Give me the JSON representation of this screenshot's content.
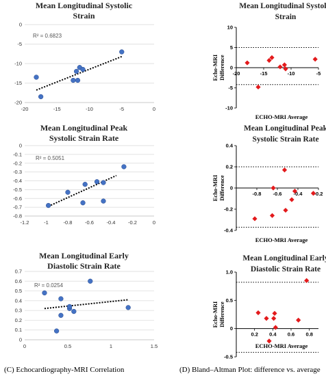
{
  "caption_left": "(C) Echocardiography-MRI Correlation",
  "caption_right": "(D) Bland–Altman Plot: difference vs. average",
  "chart_data": [
    {
      "type": "scatter",
      "title_lines": [
        "Mean Longitudinal  Systolic",
        "Strain"
      ],
      "xlim": [
        -20,
        0
      ],
      "xticks": [
        -20,
        -15,
        -10,
        -5,
        0
      ],
      "ylim": [
        -20,
        0
      ],
      "yticks": [
        -20,
        -15,
        -10,
        -5,
        0
      ],
      "r2": "R² = 0.6823",
      "points": [
        [
          -18.2,
          -13.5
        ],
        [
          -17.5,
          -18.5
        ],
        [
          -12.5,
          -14.3
        ],
        [
          -12,
          -12
        ],
        [
          -11.8,
          -14.3
        ],
        [
          -11.5,
          -11
        ],
        [
          -11,
          -11.5
        ],
        [
          -5,
          -7
        ]
      ],
      "trend": [
        [
          -18.2,
          -16.8
        ],
        [
          -5,
          -8.2
        ]
      ],
      "series_color": "#4472c4"
    },
    {
      "type": "scatter",
      "title_lines": [
        "Mean Longitudinal  Peak",
        "Systolic Strain Rate"
      ],
      "xlim": [
        -1.2,
        0
      ],
      "xticks": [
        -1.2,
        -1,
        -0.8,
        -0.6,
        -0.4,
        -0.2,
        0
      ],
      "ylim": [
        -0.8,
        0
      ],
      "yticks": [
        -0.8,
        -0.7,
        -0.6,
        -0.5,
        -0.4,
        -0.3,
        -0.2,
        -0.1,
        0
      ],
      "r2": "R² = 0.5051",
      "points": [
        [
          -0.98,
          -0.68
        ],
        [
          -0.8,
          -0.53
        ],
        [
          -0.66,
          -0.65
        ],
        [
          -0.64,
          -0.44
        ],
        [
          -0.53,
          -0.41
        ],
        [
          -0.47,
          -0.42
        ],
        [
          -0.47,
          -0.63
        ],
        [
          -0.28,
          -0.24
        ]
      ],
      "trend": [
        [
          -0.98,
          -0.69
        ],
        [
          -0.35,
          -0.34
        ]
      ],
      "series_color": "#4472c4"
    },
    {
      "type": "scatter",
      "title_lines": [
        "Mean Longitudinal  Early",
        "Diastolic Strain Rate"
      ],
      "xlim": [
        0,
        1.5
      ],
      "xticks": [
        0,
        0.5,
        1,
        1.5
      ],
      "ylim": [
        0,
        0.7
      ],
      "yticks": [
        0,
        0.1,
        0.2,
        0.3,
        0.4,
        0.5,
        0.6,
        0.7
      ],
      "r2": "R² = 0.0254",
      "points": [
        [
          0.23,
          0.48
        ],
        [
          0.37,
          0.09
        ],
        [
          0.42,
          0.42
        ],
        [
          0.42,
          0.25
        ],
        [
          0.52,
          0.32
        ],
        [
          0.52,
          0.34
        ],
        [
          0.57,
          0.29
        ],
        [
          0.76,
          0.6
        ],
        [
          1.2,
          0.33
        ]
      ],
      "trend": [
        [
          0.23,
          0.32
        ],
        [
          1.2,
          0.41
        ]
      ],
      "series_color": "#4472c4"
    },
    {
      "type": "scatter",
      "title_lines": [
        "Mean Longitudinal Systolic",
        "Strain"
      ],
      "xlim": [
        -20,
        -5
      ],
      "xticks": [
        -20,
        -15,
        -10,
        -5
      ],
      "ylim": [
        -10,
        10
      ],
      "yticks": [
        -10,
        -5,
        0,
        5,
        10
      ],
      "ylabel_lines": [
        "Echo-MRI",
        "Difference"
      ],
      "xlabel": "ECHO-MRI Average",
      "limits": [
        5,
        -4.2
      ],
      "points": [
        [
          -18,
          1.2
        ],
        [
          -16,
          -4.8
        ],
        [
          -14,
          1.8
        ],
        [
          -13.5,
          2.5
        ],
        [
          -12,
          0.2
        ],
        [
          -11.2,
          0.7
        ],
        [
          -11,
          -0.3
        ],
        [
          -5.6,
          2.1
        ]
      ],
      "series_color": "#e31a1c"
    },
    {
      "type": "scatter",
      "title_lines": [
        "Mean Longitudinal Peak",
        "Systolic Strain Rate"
      ],
      "xlim": [
        -1,
        -0.2
      ],
      "xticks": [
        -0.8,
        -0.6,
        -0.4,
        -0.2
      ],
      "ylim": [
        -0.4,
        0.4
      ],
      "yticks": [
        -0.4,
        -0.2,
        0,
        0.2,
        0.4
      ],
      "ylabel_lines": [
        "Echo-MRI",
        "Difference"
      ],
      "xlabel": "ECHO-MRI Average",
      "limits": [
        0.2,
        -0.37
      ],
      "points": [
        [
          -0.82,
          -0.29
        ],
        [
          -0.65,
          -0.26
        ],
        [
          -0.64,
          0.0
        ],
        [
          -0.53,
          0.17
        ],
        [
          -0.52,
          -0.21
        ],
        [
          -0.46,
          -0.11
        ],
        [
          -0.43,
          -0.03
        ],
        [
          -0.25,
          -0.05
        ]
      ],
      "series_color": "#e31a1c"
    },
    {
      "type": "scatter",
      "title_lines": [
        "Mean Longitudinal Early",
        "Diastolic Strain Rate"
      ],
      "xlim": [
        0,
        0.9
      ],
      "xticks": [
        0.2,
        0.4,
        0.6,
        0.8
      ],
      "ylim": [
        -0.5,
        1.0
      ],
      "yticks": [
        -0.5,
        0,
        0.5,
        1.0
      ],
      "ylabel_lines": [
        "Echo-MRI",
        "Difference"
      ],
      "xlabel": "ECHO-MRI Average",
      "limits": [
        0.82,
        -0.42
      ],
      "points": [
        [
          0.24,
          0.28
        ],
        [
          0.33,
          0.18
        ],
        [
          0.36,
          -0.22
        ],
        [
          0.41,
          0.18
        ],
        [
          0.42,
          0.27
        ],
        [
          0.43,
          0.02
        ],
        [
          0.68,
          0.15
        ],
        [
          0.77,
          0.85
        ]
      ],
      "series_color": "#e31a1c"
    }
  ]
}
